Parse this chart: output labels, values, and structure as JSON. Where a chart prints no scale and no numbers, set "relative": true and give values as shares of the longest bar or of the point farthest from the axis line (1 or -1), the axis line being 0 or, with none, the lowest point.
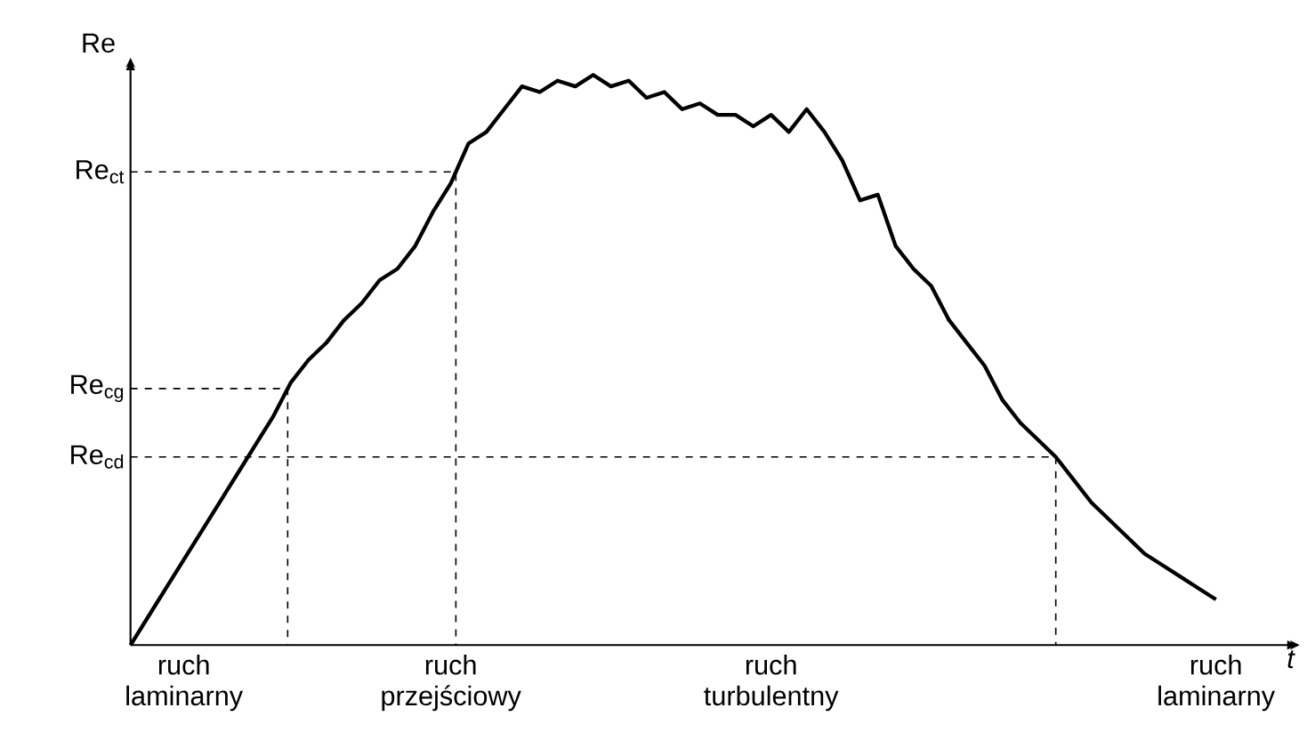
{
  "chart_data": {
    "type": "line",
    "relative": true,
    "xlabel": "t",
    "ylabel": "Re",
    "categories": [
      null,
      null,
      null,
      "ruch laminarny",
      null,
      null,
      null,
      null,
      null,
      null,
      null,
      null,
      null,
      null,
      null,
      null,
      null,
      null,
      "ruch przejściowy",
      null,
      null,
      null,
      null,
      null,
      null,
      null,
      null,
      null,
      null,
      null,
      null,
      null,
      null,
      null,
      null,
      null,
      "ruch turbulentny",
      null,
      null,
      null,
      null,
      null,
      null,
      null,
      null,
      null,
      null,
      null,
      null,
      null,
      null,
      null,
      null,
      null,
      null,
      null,
      null,
      null,
      null,
      null,
      null,
      "ruch laminarny"
    ],
    "ref_lines": [
      {
        "axis": "y",
        "value": 0.83,
        "label": "Re$_{ct}$"
      },
      {
        "axis": "y",
        "value": 0.45,
        "label": "Re$_{cg}$"
      },
      {
        "axis": "y",
        "value": 0.33,
        "label": "Re$_{cd}$"
      }
    ],
    "series": [
      {
        "color": "#000000",
        "values": [
          0,
          0.05,
          0.1,
          0.15,
          0.2,
          0.25,
          0.3,
          0.35,
          0.4,
          0.46,
          0.5,
          0.53,
          0.57,
          0.6,
          0.64,
          0.66,
          0.7,
          0.76,
          0.81,
          0.88,
          0.9,
          0.94,
          0.98,
          0.97,
          0.99,
          0.98,
          1,
          0.98,
          0.99,
          0.96,
          0.97,
          0.94,
          0.95,
          0.93,
          0.93,
          0.91,
          0.93,
          0.9,
          0.94,
          0.9,
          0.85,
          0.78,
          0.79,
          0.7,
          0.66,
          0.63,
          0.57,
          0.53,
          0.49,
          0.43,
          0.39,
          0.36,
          0.33,
          0.29,
          0.25,
          0.22,
          0.19,
          0.16,
          0.14,
          0.12,
          0.1,
          0.08
        ]
      }
    ]
  }
}
